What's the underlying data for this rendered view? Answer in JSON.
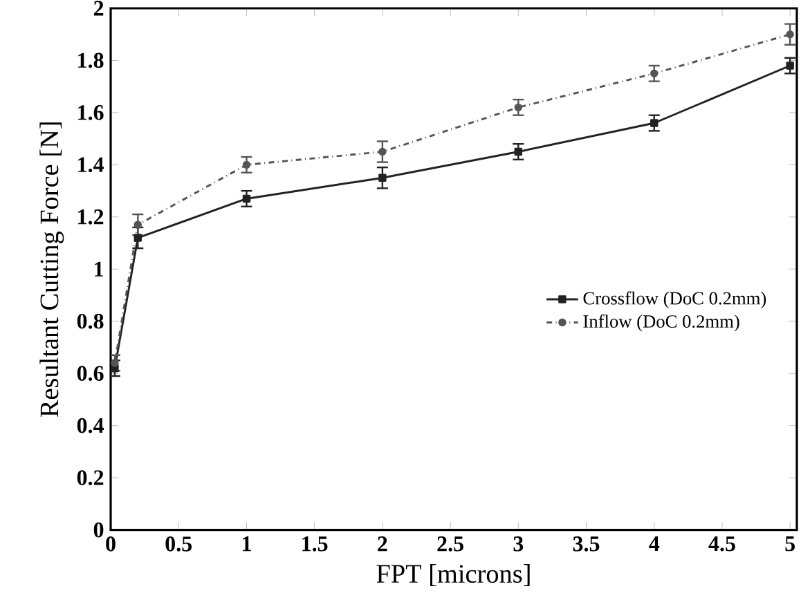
{
  "chart_data": {
    "type": "line",
    "xlabel": "FPT [microns]",
    "ylabel": "Resultant Cutting Force [N]",
    "x": [
      0.03,
      0.2,
      1,
      2,
      3,
      4,
      5
    ],
    "series": [
      {
        "name": "Crossflow (DoC 0.2mm)",
        "color": "#222222",
        "marker": "square",
        "line_style": "solid",
        "values": [
          0.62,
          1.12,
          1.27,
          1.35,
          1.45,
          1.56,
          1.78
        ],
        "errors": [
          0.03,
          0.04,
          0.03,
          0.04,
          0.03,
          0.03,
          0.03
        ]
      },
      {
        "name": "Inflow (DoC 0.2mm)",
        "color": "#555555",
        "marker": "circle",
        "line_style": "dashdot",
        "values": [
          0.64,
          1.17,
          1.4,
          1.45,
          1.62,
          1.75,
          1.9
        ],
        "errors": [
          0.03,
          0.04,
          0.03,
          0.04,
          0.03,
          0.03,
          0.04
        ]
      }
    ],
    "xlim": [
      0,
      5.05
    ],
    "ylim": [
      0,
      2
    ],
    "xticks": [
      0,
      0.5,
      1,
      1.5,
      2,
      2.5,
      3,
      3.5,
      4,
      4.5,
      5
    ],
    "yticks": [
      0,
      0.2,
      0.4,
      0.6,
      0.8,
      1,
      1.2,
      1.4,
      1.6,
      1.8,
      2
    ],
    "grid": false,
    "legend": "right"
  }
}
